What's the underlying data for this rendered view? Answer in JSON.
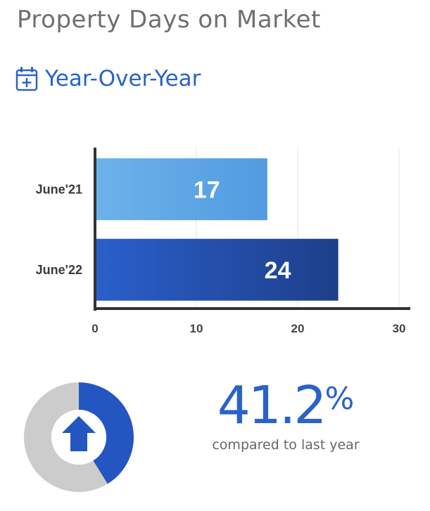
{
  "page_title": "Property Days on Market",
  "section": {
    "heading": "Year-Over-Year",
    "icon": "calendar-plus-icon"
  },
  "chart_data": {
    "type": "bar",
    "orientation": "horizontal",
    "categories": [
      "June'21",
      "June'22"
    ],
    "values": [
      17,
      24
    ],
    "xlim": [
      0,
      30
    ],
    "xticks": [
      0,
      10,
      20,
      30
    ],
    "grid": true,
    "colors": [
      "#5aa0e2",
      "#2456c2"
    ]
  },
  "change": {
    "value": "41.2",
    "unit": "%",
    "caption": "compared to last year",
    "direction": "up",
    "direction_icon": "arrow-up-icon",
    "fraction": 0.412
  },
  "colors": {
    "accent": "#2a62c9",
    "donut_bg": "#cccccc",
    "title": "#6f6f6f"
  }
}
